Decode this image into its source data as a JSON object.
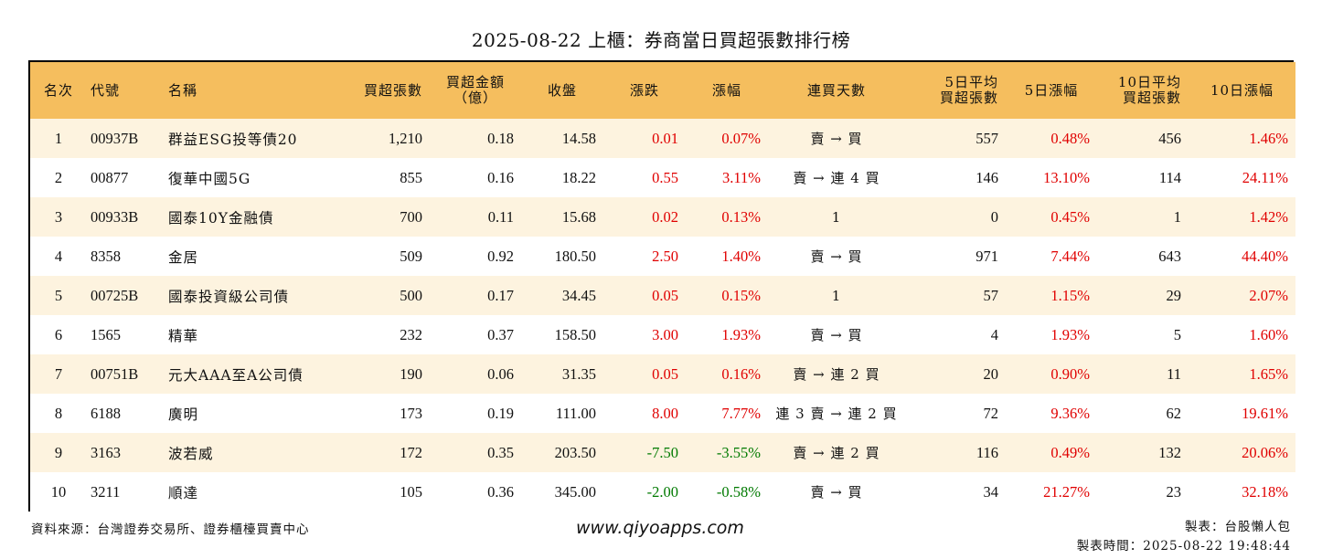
{
  "title": "2025-08-22 上櫃：券商當日買超張數排行榜",
  "headers": [
    {
      "line1": "名次",
      "line2": ""
    },
    {
      "line1": "代號",
      "line2": ""
    },
    {
      "line1": "名稱",
      "line2": ""
    },
    {
      "line1": "買超張數",
      "line2": ""
    },
    {
      "line1": "買超金額",
      "line2": "（億）"
    },
    {
      "line1": "收盤",
      "line2": ""
    },
    {
      "line1": "漲跌",
      "line2": ""
    },
    {
      "line1": "漲幅",
      "line2": ""
    },
    {
      "line1": "連買天數",
      "line2": ""
    },
    {
      "line1": "5日平均",
      "line2": "買超張數"
    },
    {
      "line1": "5日漲幅",
      "line2": ""
    },
    {
      "line1": "10日平均",
      "line2": "買超張數"
    },
    {
      "line1": "10日漲幅",
      "line2": ""
    }
  ],
  "rows": [
    {
      "rank": "1",
      "code": "00937B",
      "name": "群益ESG投等債20",
      "net_lots": "1,210",
      "net_amount": "0.18",
      "close": "14.58",
      "change": "0.01",
      "change_dir": "up",
      "pct": "0.07%",
      "pct_dir": "up",
      "days": "賣 → 買",
      "avg5": "557",
      "pct5": "0.48%",
      "pct5_dir": "up",
      "avg10": "456",
      "pct10": "1.46%",
      "pct10_dir": "up"
    },
    {
      "rank": "2",
      "code": "00877",
      "name": "復華中國5G",
      "net_lots": "855",
      "net_amount": "0.16",
      "close": "18.22",
      "change": "0.55",
      "change_dir": "up",
      "pct": "3.11%",
      "pct_dir": "up",
      "days": "賣 → 連 4 買",
      "avg5": "146",
      "pct5": "13.10%",
      "pct5_dir": "up",
      "avg10": "114",
      "pct10": "24.11%",
      "pct10_dir": "up"
    },
    {
      "rank": "3",
      "code": "00933B",
      "name": "國泰10Y金融債",
      "net_lots": "700",
      "net_amount": "0.11",
      "close": "15.68",
      "change": "0.02",
      "change_dir": "up",
      "pct": "0.13%",
      "pct_dir": "up",
      "days": "1",
      "avg5": "0",
      "pct5": "0.45%",
      "pct5_dir": "up",
      "avg10": "1",
      "pct10": "1.42%",
      "pct10_dir": "up"
    },
    {
      "rank": "4",
      "code": "8358",
      "name": "金居",
      "net_lots": "509",
      "net_amount": "0.92",
      "close": "180.50",
      "change": "2.50",
      "change_dir": "up",
      "pct": "1.40%",
      "pct_dir": "up",
      "days": "賣 → 買",
      "avg5": "971",
      "pct5": "7.44%",
      "pct5_dir": "up",
      "avg10": "643",
      "pct10": "44.40%",
      "pct10_dir": "up"
    },
    {
      "rank": "5",
      "code": "00725B",
      "name": "國泰投資級公司債",
      "net_lots": "500",
      "net_amount": "0.17",
      "close": "34.45",
      "change": "0.05",
      "change_dir": "up",
      "pct": "0.15%",
      "pct_dir": "up",
      "days": "1",
      "avg5": "57",
      "pct5": "1.15%",
      "pct5_dir": "up",
      "avg10": "29",
      "pct10": "2.07%",
      "pct10_dir": "up"
    },
    {
      "rank": "6",
      "code": "1565",
      "name": "精華",
      "net_lots": "232",
      "net_amount": "0.37",
      "close": "158.50",
      "change": "3.00",
      "change_dir": "up",
      "pct": "1.93%",
      "pct_dir": "up",
      "days": "賣 → 買",
      "avg5": "4",
      "pct5": "1.93%",
      "pct5_dir": "up",
      "avg10": "5",
      "pct10": "1.60%",
      "pct10_dir": "up"
    },
    {
      "rank": "7",
      "code": "00751B",
      "name": "元大AAA至A公司債",
      "net_lots": "190",
      "net_amount": "0.06",
      "close": "31.35",
      "change": "0.05",
      "change_dir": "up",
      "pct": "0.16%",
      "pct_dir": "up",
      "days": "賣 → 連 2 買",
      "avg5": "20",
      "pct5": "0.90%",
      "pct5_dir": "up",
      "avg10": "11",
      "pct10": "1.65%",
      "pct10_dir": "up"
    },
    {
      "rank": "8",
      "code": "6188",
      "name": "廣明",
      "net_lots": "173",
      "net_amount": "0.19",
      "close": "111.00",
      "change": "8.00",
      "change_dir": "up",
      "pct": "7.77%",
      "pct_dir": "up",
      "days": "連 3 賣 → 連 2 買",
      "avg5": "72",
      "pct5": "9.36%",
      "pct5_dir": "up",
      "avg10": "62",
      "pct10": "19.61%",
      "pct10_dir": "up"
    },
    {
      "rank": "9",
      "code": "3163",
      "name": "波若威",
      "net_lots": "172",
      "net_amount": "0.35",
      "close": "203.50",
      "change": "-7.50",
      "change_dir": "down",
      "pct": "-3.55%",
      "pct_dir": "down",
      "days": "賣 → 連 2 買",
      "avg5": "116",
      "pct5": "0.49%",
      "pct5_dir": "up",
      "avg10": "132",
      "pct10": "20.06%",
      "pct10_dir": "up"
    },
    {
      "rank": "10",
      "code": "3211",
      "name": "順達",
      "net_lots": "105",
      "net_amount": "0.36",
      "close": "345.00",
      "change": "-2.00",
      "change_dir": "down",
      "pct": "-0.58%",
      "pct_dir": "down",
      "days": "賣 → 買",
      "avg5": "34",
      "pct5": "21.27%",
      "pct5_dir": "up",
      "avg10": "23",
      "pct10": "32.18%",
      "pct10_dir": "up"
    }
  ],
  "footer": {
    "source": "資料來源：台灣證券交易所、證券櫃檯買賣中心",
    "website": "www.qiyoapps.com",
    "author": "製表：台股懶人包",
    "time": "製表時間：2025-08-22 19:48:44"
  },
  "colors": {
    "header_bg": "#f5be5e",
    "odd_row_bg": "#fdf3df",
    "up": "#e00000",
    "down": "#007a00"
  }
}
